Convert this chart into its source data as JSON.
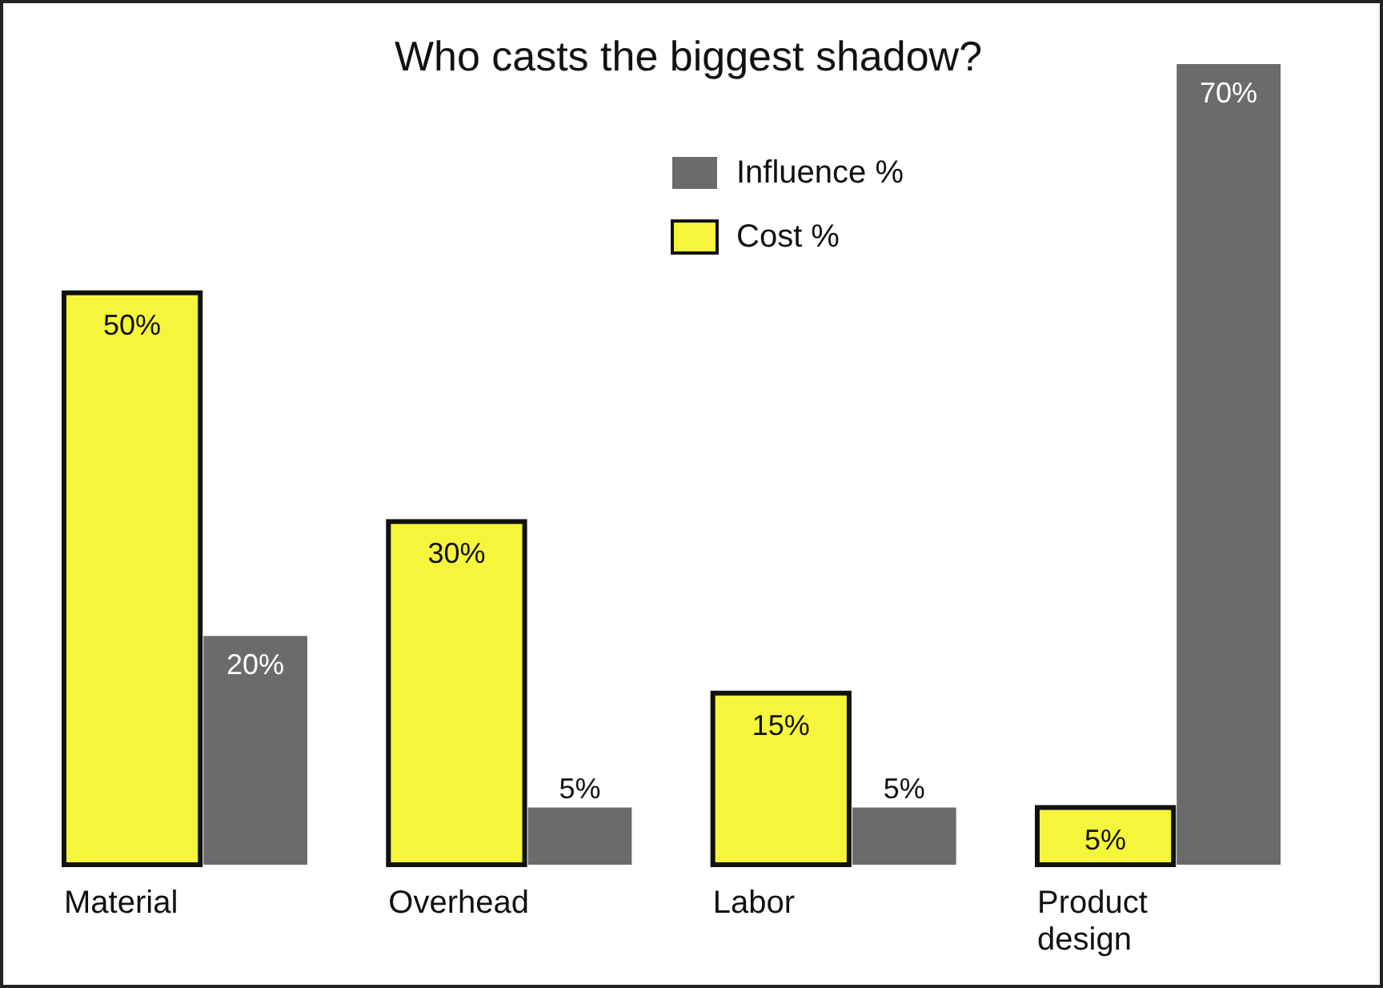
{
  "chart_data": {
    "type": "bar",
    "title": "Who casts the biggest shadow?",
    "categories": [
      "Material",
      "Overhead",
      "Labor",
      "Product design"
    ],
    "series": [
      {
        "name": "Influence %",
        "color": "#6b6b6e",
        "values": [
          20,
          5,
          5,
          70
        ],
        "value_labels": [
          "20%",
          "5%",
          "5%",
          "70%"
        ]
      },
      {
        "name": "Cost %",
        "color": "#f5f53c",
        "values": [
          50,
          30,
          15,
          5
        ],
        "value_labels": [
          "50%",
          "30%",
          "15%",
          "5%"
        ]
      }
    ],
    "legend": "top"
  }
}
